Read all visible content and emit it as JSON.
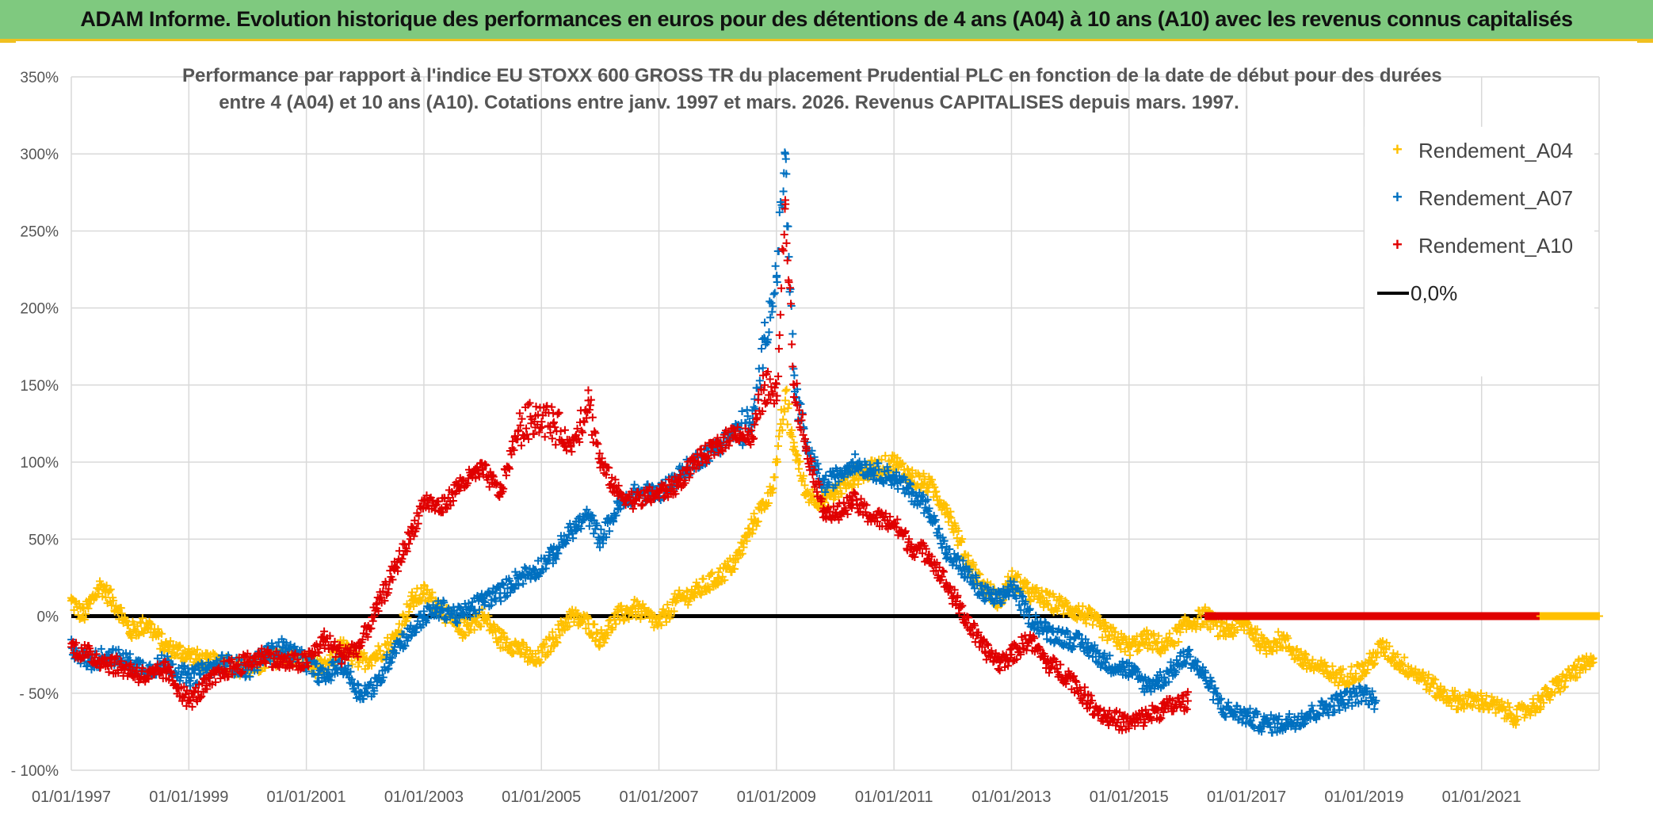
{
  "banner": {
    "title": "ADAM Informe. Evolution historique des performances en euros pour des détentions de 4 ans (A04) à 10 ans (A10) avec les revenus connus capitalisés"
  },
  "chart": {
    "subtitle_line1": "Performance par rapport à l'indice EU STOXX 600 GROSS TR  du placement Prudential PLC en fonction de la date de début pour des durées",
    "subtitle_line2": "entre 4 (A04) et 10 ans (A10). Cotations entre janv. 1997 et mars. 2026. Revenus CAPITALISES depuis mars. 1997."
  },
  "legend": {
    "a04": "Rendement_A04",
    "a07": "Rendement_A07",
    "a10": "Rendement_A10",
    "zero": "0,0%"
  },
  "colors": {
    "a04": "#ffc000",
    "a07": "#0070c0",
    "a10": "#e00000",
    "zero": "#000000",
    "grid": "#d9d9d9",
    "banner": "#7fc97f"
  },
  "chart_data": {
    "type": "scatter",
    "title": "Performance par rapport à l'indice EU STOXX 600 GROSS TR du placement Prudential PLC",
    "xlabel": "",
    "ylabel": "",
    "xlim": [
      1997.0,
      2023.0
    ],
    "ylim": [
      -100,
      350
    ],
    "yticks": [
      -100,
      -50,
      0,
      50,
      100,
      150,
      200,
      250,
      300,
      350
    ],
    "ytick_labels": [
      "- 100%",
      "- 50%",
      "0%",
      "50%",
      "100%",
      "150%",
      "200%",
      "250%",
      "300%",
      "350%"
    ],
    "xticks": [
      1997,
      1999,
      2001,
      2003,
      2005,
      2007,
      2009,
      2011,
      2013,
      2015,
      2017,
      2019,
      2021
    ],
    "xtick_labels": [
      "01/01/1997",
      "01/01/1999",
      "01/01/2001",
      "01/01/2003",
      "01/01/2005",
      "01/01/2007",
      "01/01/2009",
      "01/01/2011",
      "01/01/2013",
      "01/01/2015",
      "01/01/2017",
      "01/01/2019",
      "01/01/2021"
    ],
    "reference_line": {
      "name": "0,0%",
      "y": 0
    },
    "series": [
      {
        "name": "Rendement_A04",
        "x": [
          1997.0,
          1997.2,
          1997.5,
          1997.8,
          1998.0,
          1998.3,
          1998.6,
          1999.0,
          1999.3,
          1999.6,
          2000.0,
          2000.3,
          2000.6,
          2001.0,
          2001.3,
          2001.6,
          2001.9,
          2002.2,
          2002.5,
          2002.8,
          2003.0,
          2003.3,
          2003.6,
          2004.0,
          2004.3,
          2004.6,
          2004.9,
          2005.2,
          2005.5,
          2005.8,
          2006.0,
          2006.3,
          2006.6,
          2007.0,
          2007.3,
          2007.6,
          2008.0,
          2008.3,
          2008.6,
          2008.9,
          2009.0,
          2009.15,
          2009.3,
          2009.5,
          2009.8,
          2010.0,
          2010.3,
          2010.6,
          2011.0,
          2011.3,
          2011.6,
          2011.9,
          2012.2,
          2012.5,
          2012.8,
          2013.0,
          2013.3,
          2013.6,
          2014.0,
          2014.3,
          2014.6,
          2015.0,
          2015.3,
          2015.6,
          2016.0,
          2016.3,
          2016.6,
          2017.0,
          2017.3,
          2017.6,
          2018.0,
          2018.3,
          2018.6,
          2019.0,
          2019.3,
          2019.6,
          2020.0,
          2020.3,
          2020.6,
          2021.0,
          2021.3,
          2021.6,
          2022.0,
          2022.3,
          2022.6,
          2022.9
        ],
        "y": [
          10,
          0,
          20,
          5,
          -10,
          -5,
          -20,
          -25,
          -30,
          -30,
          -35,
          -30,
          -25,
          -30,
          -35,
          -20,
          -30,
          -25,
          -15,
          10,
          15,
          5,
          -10,
          0,
          -15,
          -20,
          -30,
          -15,
          0,
          -5,
          -15,
          0,
          5,
          -5,
          10,
          15,
          25,
          35,
          60,
          80,
          100,
          140,
          110,
          80,
          75,
          80,
          90,
          95,
          100,
          90,
          85,
          70,
          40,
          20,
          10,
          25,
          15,
          10,
          5,
          0,
          -10,
          -20,
          -15,
          -20,
          -5,
          0,
          -10,
          -5,
          -20,
          -15,
          -30,
          -35,
          -40,
          -35,
          -20,
          -30,
          -40,
          -50,
          -55,
          -55,
          -60,
          -65,
          -55,
          -45,
          -35,
          -30
        ]
      },
      {
        "name": "Rendement_A07",
        "x": [
          1997.0,
          1997.3,
          1997.6,
          1998.0,
          1998.3,
          1998.6,
          1999.0,
          1999.3,
          1999.6,
          2000.0,
          2000.3,
          2000.6,
          2001.0,
          2001.3,
          2001.6,
          2001.9,
          2002.2,
          2002.5,
          2002.8,
          2003.0,
          2003.3,
          2003.6,
          2004.0,
          2004.3,
          2004.6,
          2004.9,
          2005.2,
          2005.5,
          2005.8,
          2006.0,
          2006.3,
          2006.6,
          2007.0,
          2007.3,
          2007.6,
          2008.0,
          2008.3,
          2008.6,
          2008.8,
          2009.0,
          2009.15,
          2009.3,
          2009.5,
          2009.8,
          2010.0,
          2010.3,
          2010.6,
          2011.0,
          2011.3,
          2011.6,
          2011.9,
          2012.2,
          2012.5,
          2012.8,
          2013.0,
          2013.3,
          2013.6,
          2014.0,
          2014.3,
          2014.6,
          2015.0,
          2015.3,
          2015.6,
          2016.0,
          2016.3,
          2016.6,
          2017.0,
          2017.3,
          2017.6,
          2018.0,
          2018.3,
          2018.6,
          2019.0,
          2019.2
        ],
        "y": [
          -20,
          -30,
          -25,
          -30,
          -35,
          -30,
          -40,
          -35,
          -30,
          -35,
          -25,
          -20,
          -30,
          -40,
          -30,
          -50,
          -45,
          -20,
          -10,
          0,
          5,
          0,
          10,
          15,
          25,
          30,
          40,
          55,
          65,
          50,
          70,
          80,
          80,
          90,
          100,
          110,
          120,
          125,
          180,
          220,
          300,
          150,
          110,
          85,
          90,
          100,
          95,
          90,
          80,
          70,
          40,
          30,
          15,
          10,
          20,
          0,
          -10,
          -15,
          -20,
          -30,
          -35,
          -45,
          -40,
          -25,
          -40,
          -60,
          -65,
          -70,
          -70,
          -65,
          -60,
          -55,
          -50,
          -55
        ]
      },
      {
        "name": "Rendement_A10",
        "x": [
          1997.0,
          1997.3,
          1997.6,
          1998.0,
          1998.3,
          1998.6,
          1999.0,
          1999.3,
          1999.6,
          2000.0,
          2000.3,
          2000.6,
          2001.0,
          2001.3,
          2001.6,
          2001.9,
          2002.2,
          2002.5,
          2002.8,
          2003.0,
          2003.3,
          2003.6,
          2004.0,
          2004.3,
          2004.6,
          2004.9,
          2005.2,
          2005.5,
          2005.8,
          2006.0,
          2006.3,
          2006.6,
          2007.0,
          2007.3,
          2007.6,
          2008.0,
          2008.3,
          2008.6,
          2008.8,
          2009.0,
          2009.15,
          2009.3,
          2009.5,
          2009.8,
          2010.0,
          2010.3,
          2010.6,
          2011.0,
          2011.3,
          2011.6,
          2011.9,
          2012.2,
          2012.5,
          2012.8,
          2013.0,
          2013.3,
          2013.6,
          2014.0,
          2014.3,
          2014.6,
          2015.0,
          2015.3,
          2015.6,
          2016.0
        ],
        "y": [
          -20,
          -25,
          -30,
          -35,
          -40,
          -35,
          -55,
          -45,
          -35,
          -30,
          -25,
          -30,
          -30,
          -15,
          -25,
          -20,
          5,
          30,
          55,
          75,
          70,
          85,
          95,
          80,
          120,
          130,
          125,
          110,
          140,
          100,
          80,
          75,
          80,
          85,
          100,
          110,
          120,
          115,
          150,
          140,
          270,
          150,
          110,
          70,
          65,
          75,
          65,
          60,
          45,
          40,
          20,
          0,
          -20,
          -30,
          -25,
          -15,
          -30,
          -40,
          -55,
          -65,
          -70,
          -65,
          -60,
          -55
        ]
      },
      {
        "name": "0,0%",
        "x": [
          1997.0,
          2023.0
        ],
        "y": [
          0,
          0
        ]
      }
    ],
    "zero_marker_series": [
      {
        "name": "Rendement_A10",
        "x_range": [
          2016.3,
          2022.0
        ],
        "y": 0
      },
      {
        "name": "Rendement_A04",
        "x_range": [
          2022.0,
          2023.0
        ],
        "y": 0
      }
    ]
  }
}
